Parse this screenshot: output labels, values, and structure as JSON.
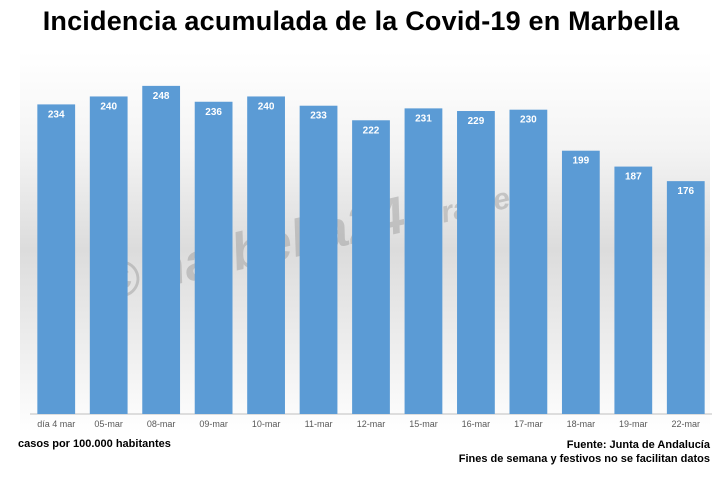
{
  "chart_data": {
    "type": "bar",
    "title": "Incidencia acumulada de la Covid-19 en Marbella",
    "categories": [
      "día 4 mar",
      "05-mar",
      "08-mar",
      "09-mar",
      "10-mar",
      "11-mar",
      "12-mar",
      "15-mar",
      "16-mar",
      "17-mar",
      "18-mar",
      "19-mar",
      "22-mar"
    ],
    "values": [
      234,
      240,
      248,
      236,
      240,
      233,
      222,
      231,
      229,
      230,
      199,
      187,
      176
    ],
    "ylim": [
      0,
      260
    ],
    "bar_color": "#5b9bd5",
    "label_color": "#ffffff",
    "grid": false,
    "legend": "none"
  },
  "notes": {
    "ylabel_note": "casos por 100.000 habitantes",
    "source": "Fuente: Junta de Andalucía",
    "disclaimer": "Fines de semana y festivos no se facilitan datos"
  },
  "watermark": "©marbella24horas.es"
}
